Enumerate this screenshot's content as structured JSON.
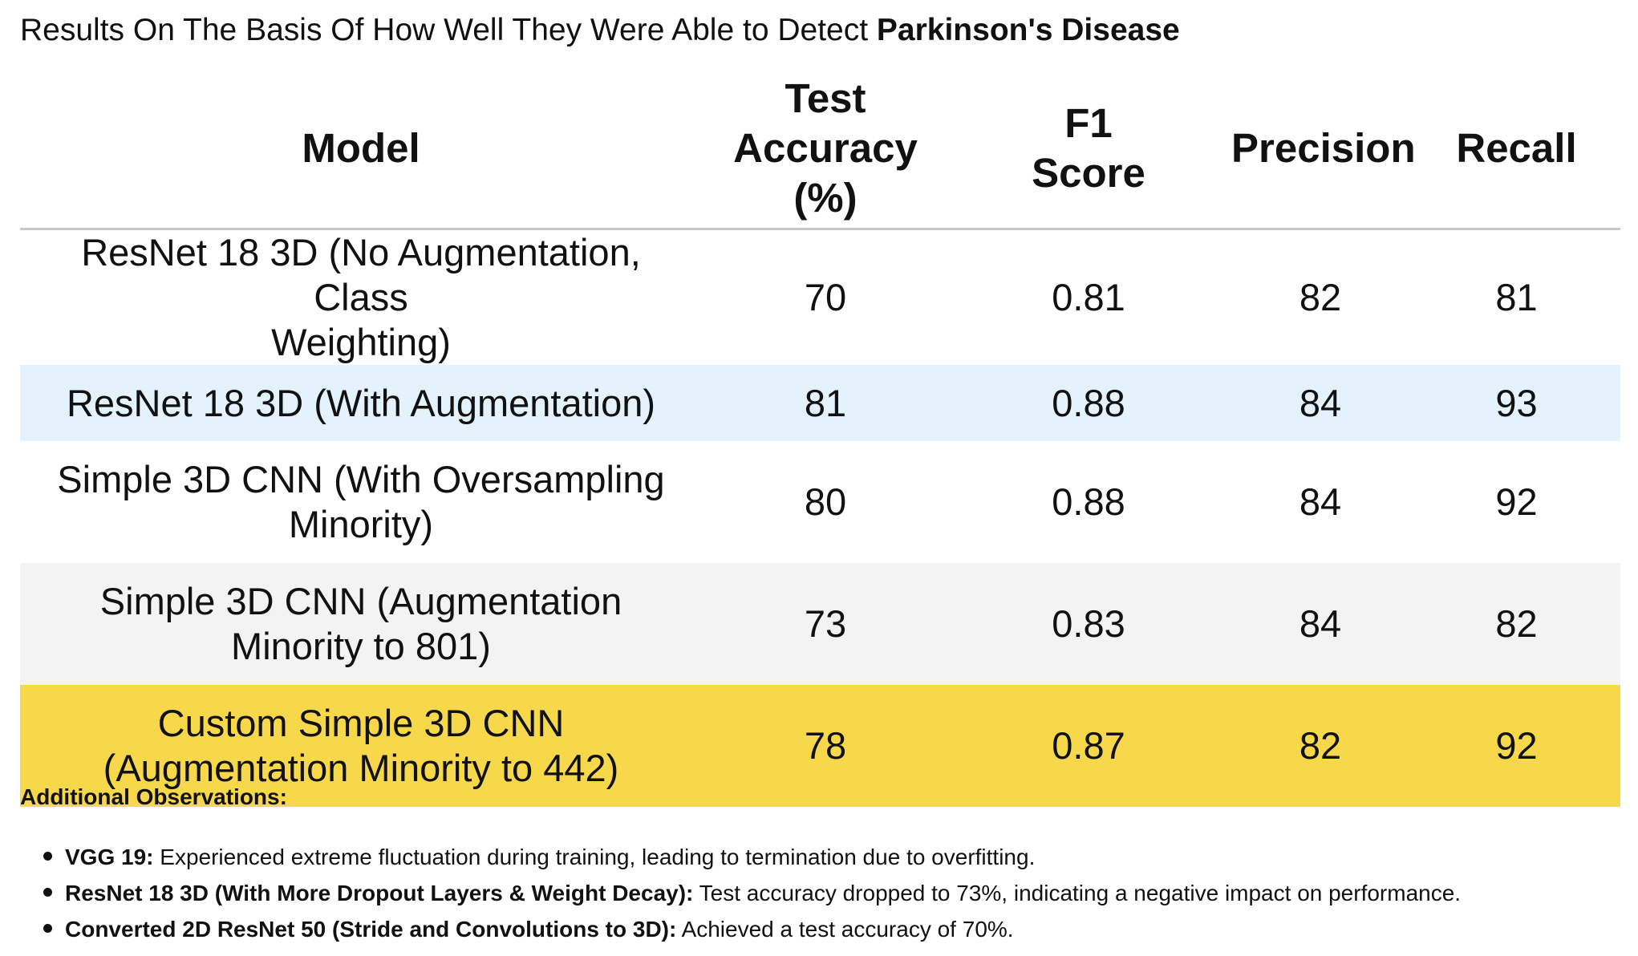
{
  "title": {
    "prefix": "Results On The Basis Of How Well They Were Able to Detect ",
    "emphasis": "Parkinson's Disease"
  },
  "table": {
    "headers": {
      "model": "Model",
      "accuracy_line1": "Test Accuracy",
      "accuracy_line2": "(%)",
      "f1_line1": "F1",
      "f1_line2": "Score",
      "precision": "Precision",
      "recall": "Recall"
    },
    "rows": [
      {
        "model_line1": "ResNet 18 3D (No Augmentation, Class",
        "model_line2": "Weighting)",
        "accuracy": "70",
        "f1": "0.81",
        "precision": "82",
        "recall": "81",
        "bg": "#ffffff"
      },
      {
        "model_line1": "ResNet 18 3D (With Augmentation)",
        "model_line2": "",
        "accuracy": "81",
        "f1": "0.88",
        "precision": "84",
        "recall": "93",
        "bg": "#e3f2fc"
      },
      {
        "model_line1": "Simple 3D CNN (With Oversampling",
        "model_line2": "Minority)",
        "accuracy": "80",
        "f1": "0.88",
        "precision": "84",
        "recall": "92",
        "bg": "#ffffff"
      },
      {
        "model_line1": "Simple 3D CNN (Augmentation",
        "model_line2": "Minority to 801)",
        "accuracy": "73",
        "f1": "0.83",
        "precision": "84",
        "recall": "82",
        "bg": "#f3f3f3"
      },
      {
        "model_line1": "Custom Simple 3D CNN",
        "model_line2": "(Augmentation Minority to 442)",
        "accuracy": "78",
        "f1": "0.87",
        "precision": "82",
        "recall": "92",
        "bg": "#f7d84b"
      }
    ]
  },
  "observations": {
    "heading": "Additional Observations:",
    "items": [
      {
        "label": "VGG 19:",
        "text": " Experienced extreme fluctuation during training, leading to termination due to overfitting."
      },
      {
        "label": "ResNet 18 3D (With More Dropout Layers & Weight Decay):",
        "text": " Test accuracy dropped to 73%, indicating a negative impact on performance."
      },
      {
        "label": "Converted 2D ResNet 50 (Stride and Convolutions to 3D):",
        "text": " Achieved a test accuracy of 70%."
      }
    ]
  }
}
